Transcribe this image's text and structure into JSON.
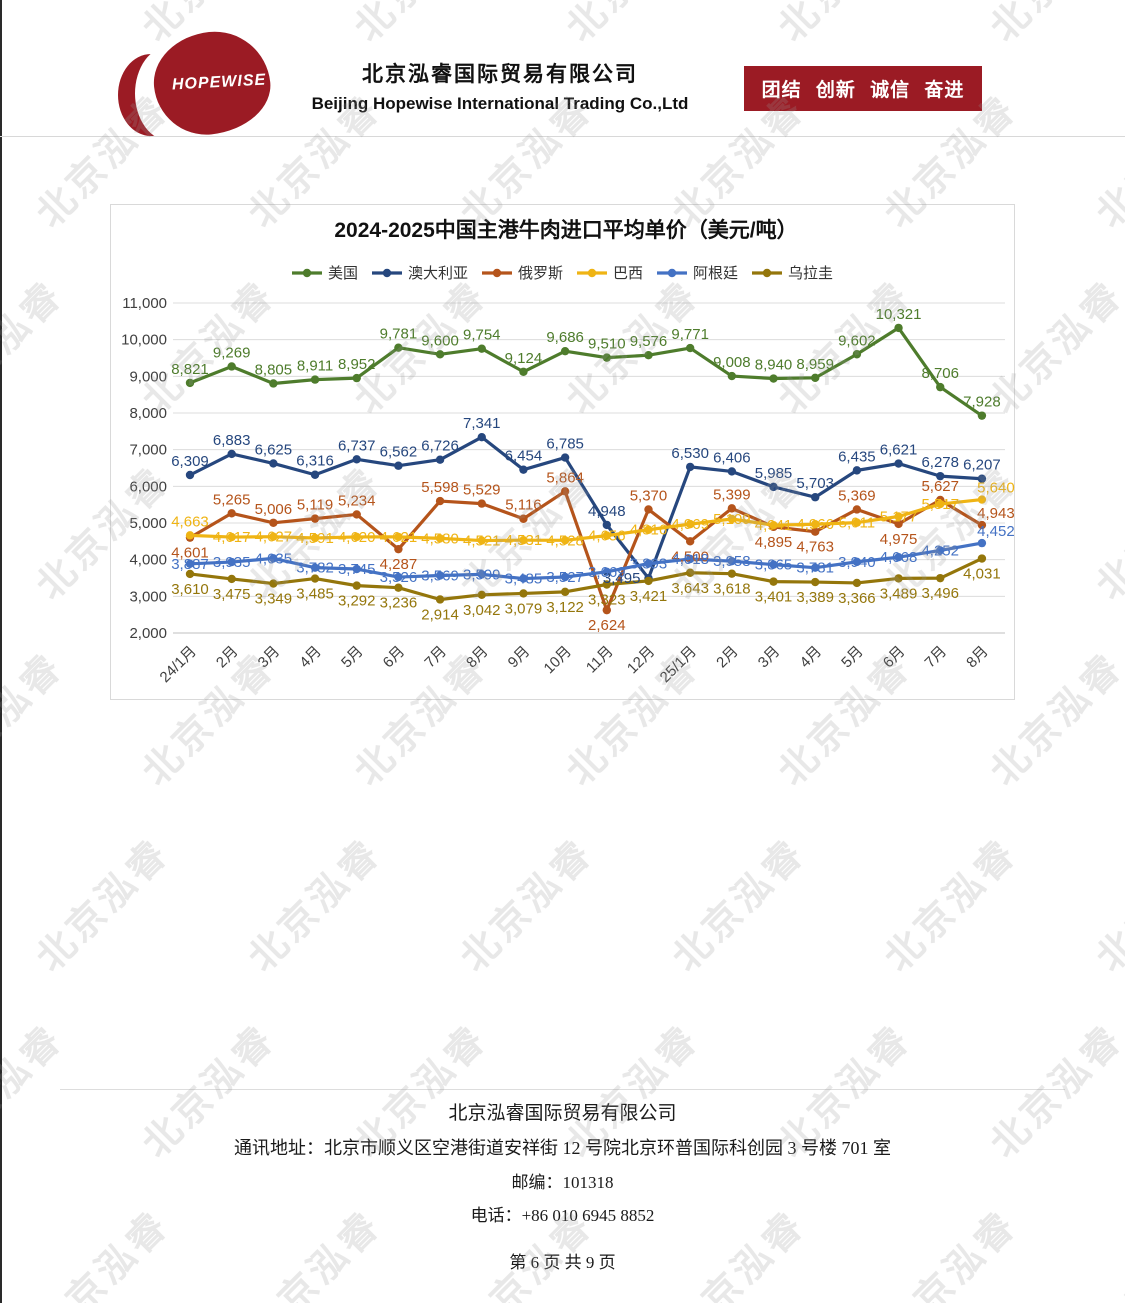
{
  "page": {
    "watermark_text": "北京泓睿"
  },
  "header": {
    "logo_text": "HOPEWISE",
    "company_cn": "北京泓睿国际贸易有限公司",
    "company_en": "Beijing Hopewise International Trading Co.,Ltd",
    "slogan": "团结 创新 诚信 奋进",
    "banner_color": "#9b1b24"
  },
  "chart_data": {
    "type": "line",
    "title": "2024-2025中国主港牛肉进口平均单价（美元/吨）",
    "categories": [
      "24/1月",
      "2月",
      "3月",
      "4月",
      "5月",
      "6月",
      "7月",
      "8月",
      "9月",
      "10月",
      "11月",
      "12月",
      "25/1月",
      "2月",
      "3月",
      "4月",
      "5月",
      "6月",
      "7月",
      "8月"
    ],
    "series": [
      {
        "name": "美国",
        "color": "#4e7c2c",
        "values": [
          8821,
          9269,
          8805,
          8911,
          8952,
          9781,
          9600,
          9754,
          9124,
          9686,
          9510,
          9576,
          9771,
          9008,
          8940,
          8959,
          9602,
          10321,
          8706,
          7928
        ]
      },
      {
        "name": "澳大利亚",
        "color": "#26477e",
        "values": [
          6309,
          6883,
          6625,
          6316,
          6737,
          6562,
          6726,
          7341,
          6454,
          6785,
          4948,
          3495,
          6530,
          6406,
          5985,
          5703,
          6435,
          6621,
          6278,
          6207
        ]
      },
      {
        "name": "俄罗斯",
        "color": "#b5541b",
        "values": [
          4601,
          5265,
          5006,
          5119,
          5234,
          4287,
          5598,
          5529,
          5116,
          5864,
          2624,
          5370,
          4500,
          5399,
          4895,
          4763,
          5369,
          4975,
          5627,
          4943
        ]
      },
      {
        "name": "巴西",
        "color": "#efb414",
        "values": [
          4663,
          4617,
          4627,
          4591,
          4620,
          4621,
          4580,
          4521,
          4531,
          4528,
          4656,
          4816,
          4969,
          5109,
          4941,
          4966,
          5011,
          5177,
          5517,
          5640
        ]
      },
      {
        "name": "阿根廷",
        "color": "#4472c4",
        "values": [
          3887,
          3935,
          4035,
          3782,
          3745,
          3526,
          3569,
          3599,
          3485,
          3527,
          3669,
          3893,
          4018,
          3958,
          3865,
          3781,
          3940,
          4068,
          4252,
          4452
        ]
      },
      {
        "name": "乌拉圭",
        "color": "#94760b",
        "values": [
          3610,
          3475,
          3349,
          3485,
          3292,
          3236,
          2914,
          3042,
          3079,
          3122,
          3323,
          3421,
          3643,
          3618,
          3401,
          3389,
          3366,
          3489,
          3496,
          4031
        ]
      }
    ],
    "ylim": [
      2000,
      11000
    ],
    "ytick_step": 1000,
    "grid": true,
    "legend_position": "top",
    "data_labels": true
  },
  "footer": {
    "company": "北京泓睿国际贸易有限公司",
    "address": "通讯地址：北京市顺义区空港街道安祥街 12 号院北京环普国际科创园 3 号楼 701 室",
    "postcode": "邮编：101318",
    "phone": "电话：+86 010 6945 8852",
    "page_info": "第 6 页 共 9 页"
  }
}
